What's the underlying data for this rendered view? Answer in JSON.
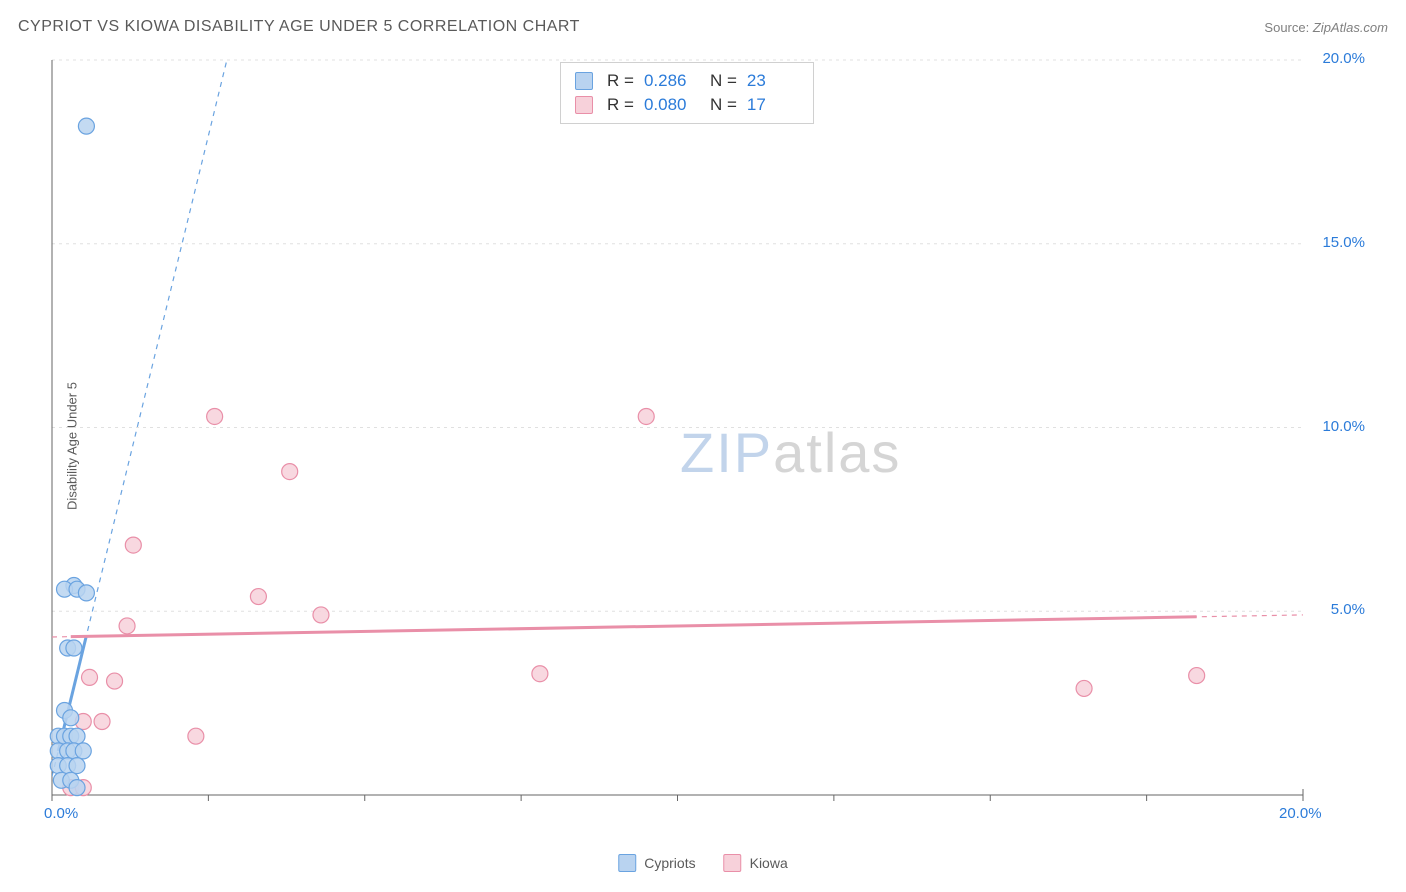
{
  "title": "CYPRIOT VS KIOWA DISABILITY AGE UNDER 5 CORRELATION CHART",
  "source": {
    "label": "Source:",
    "value": "ZipAtlas.com"
  },
  "yaxis_label": "Disability Age Under 5",
  "watermark": {
    "zip": "ZIP",
    "atlas": "atlas"
  },
  "chart": {
    "type": "scatter",
    "background_color": "#ffffff",
    "grid_color": "#e0e0e0",
    "axis_color": "#666666",
    "x": {
      "min": 0,
      "max": 20,
      "unit": "%",
      "ticks": [
        0,
        20
      ],
      "minor_tick_step": 2.5,
      "label_color": "#2b7bd9"
    },
    "y": {
      "min": 0,
      "max": 20,
      "unit": "%",
      "ticks": [
        5,
        10,
        15,
        20
      ],
      "label_color": "#2b7bd9"
    },
    "marker_radius": 8,
    "marker_stroke_width": 1.2,
    "trend_line_width_solid": 3,
    "trend_line_width_dash": 1.2,
    "dash_pattern": "5 5"
  },
  "series": [
    {
      "name": "Cypriots",
      "fill": "#b9d3f0",
      "stroke": "#6aa3e0",
      "r_value": "0.286",
      "n_value": "23",
      "points": [
        [
          0.55,
          18.2
        ],
        [
          0.35,
          5.7
        ],
        [
          0.2,
          5.6
        ],
        [
          0.4,
          5.6
        ],
        [
          0.55,
          5.5
        ],
        [
          0.25,
          4.0
        ],
        [
          0.35,
          4.0
        ],
        [
          0.2,
          2.3
        ],
        [
          0.3,
          2.1
        ],
        [
          0.1,
          1.6
        ],
        [
          0.2,
          1.6
        ],
        [
          0.3,
          1.6
        ],
        [
          0.4,
          1.6
        ],
        [
          0.1,
          1.2
        ],
        [
          0.25,
          1.2
        ],
        [
          0.35,
          1.2
        ],
        [
          0.5,
          1.2
        ],
        [
          0.1,
          0.8
        ],
        [
          0.25,
          0.8
        ],
        [
          0.4,
          0.8
        ],
        [
          0.15,
          0.4
        ],
        [
          0.3,
          0.4
        ],
        [
          0.4,
          0.2
        ]
      ],
      "trend": {
        "y_at_x0": 0.5,
        "y_at_x_end": 140,
        "x_end": 20
      }
    },
    {
      "name": "Kiowa",
      "fill": "#f7d1da",
      "stroke": "#e98fa8",
      "r_value": "0.080",
      "n_value": "17",
      "points": [
        [
          2.6,
          10.3
        ],
        [
          9.5,
          10.3
        ],
        [
          3.8,
          8.8
        ],
        [
          1.3,
          6.8
        ],
        [
          3.3,
          5.4
        ],
        [
          4.3,
          4.9
        ],
        [
          1.2,
          4.6
        ],
        [
          0.6,
          3.2
        ],
        [
          1.0,
          3.1
        ],
        [
          7.8,
          3.3
        ],
        [
          16.5,
          2.9
        ],
        [
          18.3,
          3.25
        ],
        [
          0.5,
          2.0
        ],
        [
          0.8,
          2.0
        ],
        [
          2.3,
          1.6
        ],
        [
          0.3,
          0.2
        ],
        [
          0.5,
          0.2
        ]
      ],
      "trend": {
        "y_at_x0": 4.3,
        "y_at_x_end": 4.9,
        "x_end": 20
      }
    }
  ],
  "bottom_legend": [
    {
      "label": "Cypriots",
      "fill": "#b9d3f0",
      "stroke": "#6aa3e0"
    },
    {
      "label": "Kiowa",
      "fill": "#f7d1da",
      "stroke": "#e98fa8"
    }
  ]
}
